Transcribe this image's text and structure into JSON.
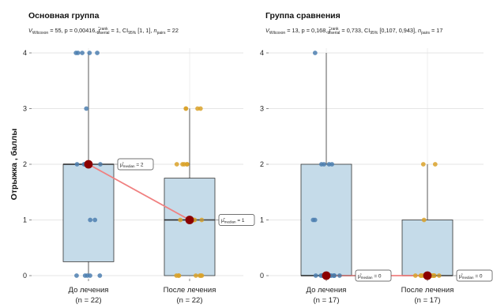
{
  "ylabel": "Отрыжка , баллы",
  "colors": {
    "box_fill": "#c5dbe9",
    "box_stroke": "#333333",
    "grid": "#dedede",
    "point_before": "#4c7fb0",
    "point_after": "#d9a22a",
    "median_point": "#8b0000",
    "median_line": "#f08080"
  },
  "chart_data": [
    {
      "type": "box",
      "title": "Основная группа",
      "subtitle": {
        "v_prefix": "V",
        "v_sub": "Wilcoxon",
        "stat_text": " = 55, p = 0,00416, ",
        "r_sym": "r̂",
        "r_sup": "rank",
        "r_sub": "biserial",
        "r_text": " = 1, CI",
        "ci_sub": "95%",
        "ci_text": " [1, 1], ",
        "n_sym": "n",
        "n_sub": "pairs",
        "n_text": " = 22"
      },
      "ylim": [
        0,
        4
      ],
      "yticks": [
        0,
        1,
        2,
        3,
        4
      ],
      "categories": [
        "До лечения",
        "После лечения"
      ],
      "category_counts": [
        "(n = 22)",
        "(n = 22)"
      ],
      "boxes": [
        {
          "q1": 0.25,
          "median": 2,
          "q3": 2,
          "whisker_low": 0,
          "whisker_high": 4
        },
        {
          "q1": 0,
          "median": 1,
          "q3": 1.75,
          "whisker_low": 0,
          "whisker_high": 3
        }
      ],
      "points": [
        [
          0,
          0,
          0,
          0,
          0,
          1,
          1,
          2,
          2,
          2,
          2,
          2,
          2,
          2,
          2,
          2,
          3,
          4,
          4,
          4,
          4,
          4
        ],
        [
          0,
          0,
          0,
          0,
          0,
          0,
          0,
          1,
          1,
          1,
          1,
          1,
          1,
          2,
          2,
          2,
          2,
          2,
          3,
          3,
          3,
          3
        ]
      ],
      "medians": [
        2,
        1
      ],
      "median_labels": [
        {
          "sym": "μ̂",
          "sub": "median",
          "text": " = 2"
        },
        {
          "sym": "μ̂",
          "sub": "median",
          "text": " = 1"
        }
      ]
    },
    {
      "type": "box",
      "title": "Группа сравнения",
      "subtitle": {
        "v_prefix": "V",
        "v_sub": "Wilcoxon",
        "stat_text": " = 13, p = 0,168, ",
        "r_sym": "r̂",
        "r_sup": "rank",
        "r_sub": "biserial",
        "r_text": " = 0,733, CI",
        "ci_sub": "95%",
        "ci_text": " [0,107, 0,943], ",
        "n_sym": "n",
        "n_sub": "pairs",
        "n_text": " = 17"
      },
      "ylim": [
        0,
        4
      ],
      "yticks": [
        0,
        1,
        2,
        3,
        4
      ],
      "categories": [
        "До лечения",
        "После лечения"
      ],
      "category_counts": [
        "(n = 17)",
        "(n = 17)"
      ],
      "boxes": [
        {
          "q1": 0,
          "median": 0,
          "q3": 2,
          "whisker_low": 0,
          "whisker_high": 4
        },
        {
          "q1": 0,
          "median": 0,
          "q3": 1,
          "whisker_low": 0,
          "whisker_high": 2
        }
      ],
      "points": [
        [
          0,
          0,
          0,
          0,
          0,
          0,
          0,
          0,
          0,
          0,
          1,
          1,
          2,
          2,
          2,
          2,
          4
        ],
        [
          0,
          0,
          0,
          0,
          0,
          0,
          0,
          0,
          0,
          0,
          0,
          0,
          0,
          0,
          1,
          2,
          2
        ]
      ],
      "medians": [
        0,
        0
      ],
      "median_labels": [
        {
          "sym": "μ̂",
          "sub": "median",
          "text": " = 0"
        },
        {
          "sym": "μ̂",
          "sub": "median",
          "text": " = 0"
        }
      ]
    }
  ]
}
